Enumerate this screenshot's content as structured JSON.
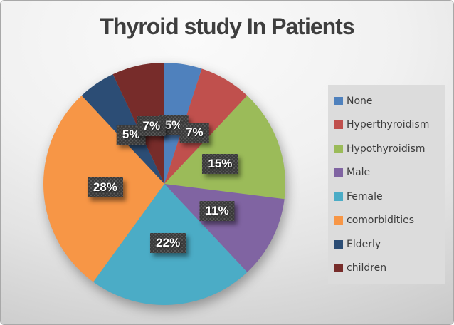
{
  "chart_data": {
    "type": "pie",
    "title": "Thyroid study In Patients",
    "legend_position": "right",
    "data_labels": "percent",
    "label_box_color": "#3A3A3A",
    "label_text_color": "#FFFFFF",
    "segments": [
      {
        "label": "None",
        "value": 5,
        "display": "5%",
        "color": "#4F81BD"
      },
      {
        "label": "Hyperthyroidism",
        "value": 7,
        "display": "7%",
        "color": "#C0504D"
      },
      {
        "label": "Hypothyroidism",
        "value": 15,
        "display": "15%",
        "color": "#9BBB59"
      },
      {
        "label": "Male",
        "value": 11,
        "display": "11%",
        "color": "#8064A2"
      },
      {
        "label": "Female",
        "value": 22,
        "display": "22%",
        "color": "#4BACC6"
      },
      {
        "label": "comorbidities",
        "value": 28,
        "display": "28%",
        "color": "#F79646"
      },
      {
        "label": "Elderly",
        "value": 5,
        "display": "5%",
        "color": "#2C4D75"
      },
      {
        "label": "children",
        "value": 7,
        "display": "7%",
        "color": "#772C2A"
      }
    ]
  }
}
